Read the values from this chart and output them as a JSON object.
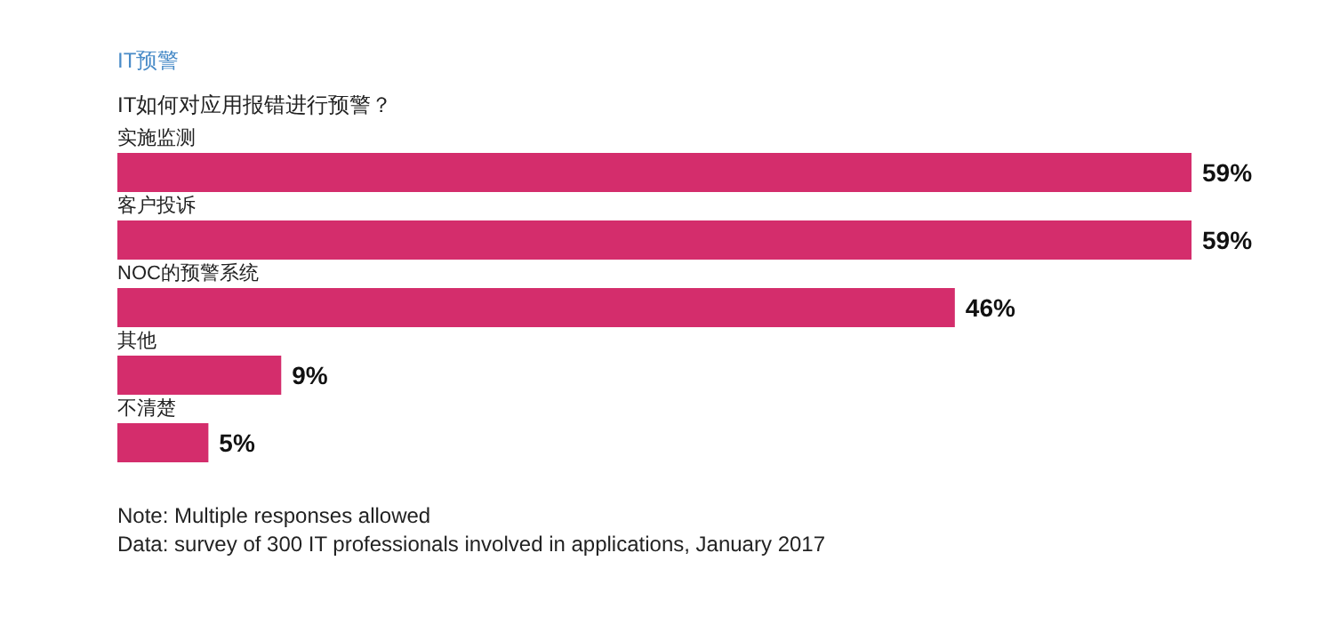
{
  "chart_data": {
    "type": "bar",
    "orientation": "horizontal",
    "title": "IT预警",
    "subtitle": "IT如何对应用报错进行预警？",
    "categories": [
      "实施监测",
      "客户投诉",
      "NOC的预警系统",
      "其他",
      "不清楚"
    ],
    "values": [
      59,
      59,
      46,
      9,
      5
    ],
    "value_labels": [
      "59%",
      "59%",
      "46%",
      "9%",
      "5%"
    ],
    "color": "#d42d6c",
    "tick_labels": false,
    "grid": false,
    "annotations": [
      "Note: Multiple responses allowed",
      "Data: survey of 300 IT professionals involved in applications, January 2017"
    ]
  }
}
